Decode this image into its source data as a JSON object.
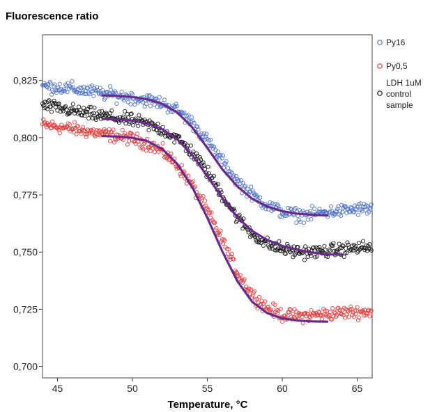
{
  "chart_data": {
    "type": "scatter",
    "title": "Fluorescence ratio",
    "xlabel": "Temperature, °C",
    "ylabel": "",
    "xlim": [
      44,
      66
    ],
    "ylim": [
      0.695,
      0.845
    ],
    "xticks": [
      {
        "value": 45,
        "label": "45"
      },
      {
        "value": 50,
        "label": "50"
      },
      {
        "value": 55,
        "label": "55"
      },
      {
        "value": 60,
        "label": "60"
      },
      {
        "value": 65,
        "label": "65"
      }
    ],
    "yticks": [
      {
        "value": 0.7,
        "label": "0,700"
      },
      {
        "value": 0.725,
        "label": "0,725"
      },
      {
        "value": 0.75,
        "label": "0,750"
      },
      {
        "value": 0.775,
        "label": "0,775"
      },
      {
        "value": 0.8,
        "label": "0,800"
      },
      {
        "value": 0.825,
        "label": "0,825"
      }
    ],
    "grid": false,
    "legend_position": "right",
    "fit_color": "#6a2a8c",
    "series": [
      {
        "name": "Py16",
        "color": "#4a6fc8",
        "points": [
          [
            44,
            0.8227
          ],
          [
            45,
            0.822
          ],
          [
            46,
            0.8213
          ],
          [
            47,
            0.8205
          ],
          [
            48,
            0.8194
          ],
          [
            49,
            0.8185
          ],
          [
            50,
            0.8175
          ],
          [
            51,
            0.8164
          ],
          [
            52,
            0.815
          ],
          [
            53,
            0.812
          ],
          [
            54,
            0.8065
          ],
          [
            55,
            0.7985
          ],
          [
            56,
            0.7895
          ],
          [
            57,
            0.781
          ],
          [
            58,
            0.775
          ],
          [
            59,
            0.7705
          ],
          [
            60,
            0.7675
          ],
          [
            61,
            0.7662
          ],
          [
            62,
            0.7665
          ],
          [
            63,
            0.7675
          ],
          [
            64,
            0.768
          ],
          [
            65,
            0.7688
          ],
          [
            66,
            0.769
          ]
        ],
        "fit": [
          [
            48,
            0.8185
          ],
          [
            49,
            0.8183
          ],
          [
            50,
            0.8178
          ],
          [
            51,
            0.8168
          ],
          [
            52,
            0.8148
          ],
          [
            53,
            0.811
          ],
          [
            54,
            0.8045
          ],
          [
            55,
            0.7955
          ],
          [
            56,
            0.7862
          ],
          [
            57,
            0.7787
          ],
          [
            58,
            0.7733
          ],
          [
            59,
            0.7699
          ],
          [
            60,
            0.7679
          ],
          [
            61,
            0.7668
          ],
          [
            62,
            0.7663
          ],
          [
            63,
            0.766
          ]
        ]
      },
      {
        "name": "Py0,5",
        "color": "#e03838",
        "points": [
          [
            44,
            0.8057
          ],
          [
            45,
            0.8048
          ],
          [
            46,
            0.8038
          ],
          [
            47,
            0.8028
          ],
          [
            48,
            0.8017
          ],
          [
            49,
            0.8007
          ],
          [
            50,
            0.7995
          ],
          [
            51,
            0.7975
          ],
          [
            52,
            0.794
          ],
          [
            53,
            0.788
          ],
          [
            54,
            0.779
          ],
          [
            55,
            0.768
          ],
          [
            56,
            0.755
          ],
          [
            57,
            0.7412
          ],
          [
            58,
            0.7315
          ],
          [
            59,
            0.7255
          ],
          [
            60,
            0.7225
          ],
          [
            61,
            0.722
          ],
          [
            62,
            0.7225
          ],
          [
            63,
            0.723
          ],
          [
            64,
            0.7235
          ],
          [
            65,
            0.7238
          ],
          [
            66,
            0.724
          ]
        ],
        "fit": [
          [
            48,
            0.8007
          ],
          [
            49,
            0.8005
          ],
          [
            50,
            0.8
          ],
          [
            51,
            0.7985
          ],
          [
            52,
            0.795
          ],
          [
            53,
            0.7885
          ],
          [
            54,
            0.7783
          ],
          [
            55,
            0.765
          ],
          [
            56,
            0.7503
          ],
          [
            57,
            0.7373
          ],
          [
            58,
            0.7282
          ],
          [
            59,
            0.7233
          ],
          [
            60,
            0.721
          ],
          [
            61,
            0.7201
          ],
          [
            62,
            0.7197
          ],
          [
            63,
            0.7196
          ]
        ]
      },
      {
        "name": "LDH 1uM control sample",
        "color": "#111111",
        "points": [
          [
            44,
            0.8142
          ],
          [
            45,
            0.813
          ],
          [
            46,
            0.8118
          ],
          [
            47,
            0.8105
          ],
          [
            48,
            0.8095
          ],
          [
            49,
            0.8085
          ],
          [
            50,
            0.8075
          ],
          [
            51,
            0.8058
          ],
          [
            52,
            0.8035
          ],
          [
            53,
            0.7995
          ],
          [
            54,
            0.7935
          ],
          [
            55,
            0.785
          ],
          [
            56,
            0.775
          ],
          [
            57,
            0.765
          ],
          [
            58,
            0.758
          ],
          [
            59,
            0.7535
          ],
          [
            60,
            0.7512
          ],
          [
            61,
            0.7502
          ],
          [
            62,
            0.75
          ],
          [
            63,
            0.7505
          ],
          [
            64,
            0.7512
          ],
          [
            65,
            0.7518
          ],
          [
            66,
            0.752
          ]
        ],
        "fit": [
          [
            48,
            0.8083
          ],
          [
            49,
            0.808
          ],
          [
            50,
            0.8075
          ],
          [
            51,
            0.8062
          ],
          [
            52,
            0.8037
          ],
          [
            53,
            0.7993
          ],
          [
            54,
            0.7923
          ],
          [
            55,
            0.7832
          ],
          [
            56,
            0.7736
          ],
          [
            57,
            0.7652
          ],
          [
            58,
            0.7592
          ],
          [
            59,
            0.7553
          ],
          [
            60,
            0.7527
          ],
          [
            61,
            0.751
          ],
          [
            62,
            0.7498
          ],
          [
            63,
            0.749
          ],
          [
            64,
            0.7488
          ]
        ]
      }
    ]
  },
  "legend": {
    "entries": [
      "Py16",
      "Py0,5",
      "LDH 1uM",
      "control",
      "sample"
    ]
  }
}
